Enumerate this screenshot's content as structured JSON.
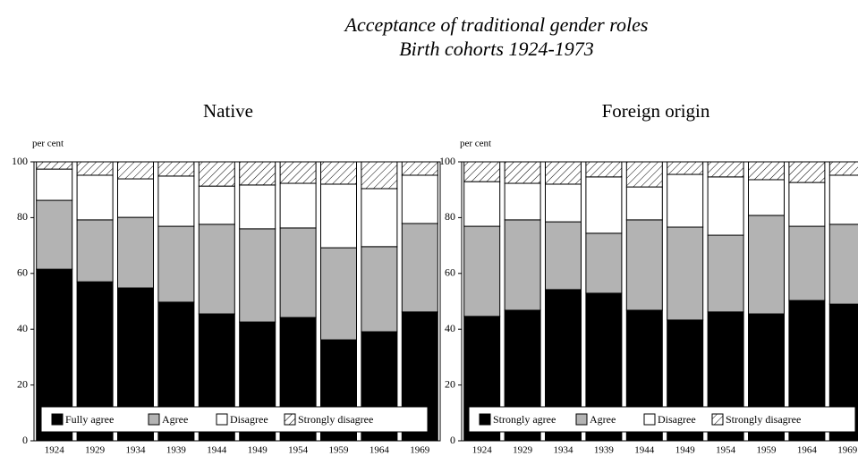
{
  "title": "Acceptance of traditional gender roles",
  "subtitle": "Birth cohorts 1924-1973",
  "chart_data": [
    {
      "type": "bar",
      "stacked": true,
      "title": "Native",
      "ylabel": "per cent",
      "categories": [
        "1924",
        "1929",
        "1934",
        "1939",
        "1944",
        "1949",
        "1954",
        "1959",
        "1964",
        "1969"
      ],
      "ylim": [
        0,
        100
      ],
      "yticks": [
        0,
        20,
        40,
        60,
        80,
        100
      ],
      "series": [
        {
          "name": "Fully agree",
          "color": "#000000",
          "values": [
            61.5,
            57,
            54.8,
            49.7,
            45.5,
            42.6,
            44.2,
            36.2,
            39.1,
            46.2
          ]
        },
        {
          "name": "Agree",
          "color": "#b3b3b3",
          "values": [
            24.7,
            22.2,
            25.3,
            27.2,
            32.1,
            33.4,
            32.1,
            33,
            30.5,
            31.7
          ]
        },
        {
          "name": "Disagree",
          "color": "#ffffff",
          "values": [
            11.2,
            16,
            13.8,
            18,
            13.7,
            15.7,
            16,
            22.8,
            20.8,
            17.3
          ]
        },
        {
          "name": "Strongly disagree",
          "color": "#ffffff",
          "hatch": true,
          "values": [
            2.6,
            4.8,
            6.1,
            5.1,
            8.7,
            8.3,
            7.7,
            8,
            9.6,
            4.8
          ]
        }
      ]
    },
    {
      "type": "bar",
      "stacked": true,
      "title": "Foreign origin",
      "ylabel": "per cent",
      "categories": [
        "1924",
        "1929",
        "1934",
        "1939",
        "1944",
        "1949",
        "1954",
        "1959",
        "1964",
        "1969"
      ],
      "ylim": [
        0,
        100
      ],
      "yticks": [
        0,
        20,
        40,
        60,
        80,
        100
      ],
      "series": [
        {
          "name": "Strongly agree",
          "color": "#000000",
          "values": [
            44.6,
            46.8,
            54.2,
            52.9,
            46.8,
            43.3,
            46.2,
            45.5,
            50.3,
            49
          ]
        },
        {
          "name": "Agree",
          "color": "#b3b3b3",
          "values": [
            32.3,
            32.4,
            24.3,
            21.5,
            32.4,
            33.3,
            27.5,
            35.3,
            26.6,
            28.6
          ]
        },
        {
          "name": "Disagree",
          "color": "#ffffff",
          "values": [
            16,
            13.1,
            13.5,
            20.2,
            11.8,
            18.9,
            20.9,
            12.8,
            15.7,
            17.6
          ]
        },
        {
          "name": "Strongly disagree",
          "color": "#ffffff",
          "hatch": true,
          "values": [
            7.1,
            7.7,
            8,
            5.4,
            9,
            4.5,
            5.4,
            6.4,
            7.4,
            4.8
          ]
        }
      ]
    }
  ]
}
